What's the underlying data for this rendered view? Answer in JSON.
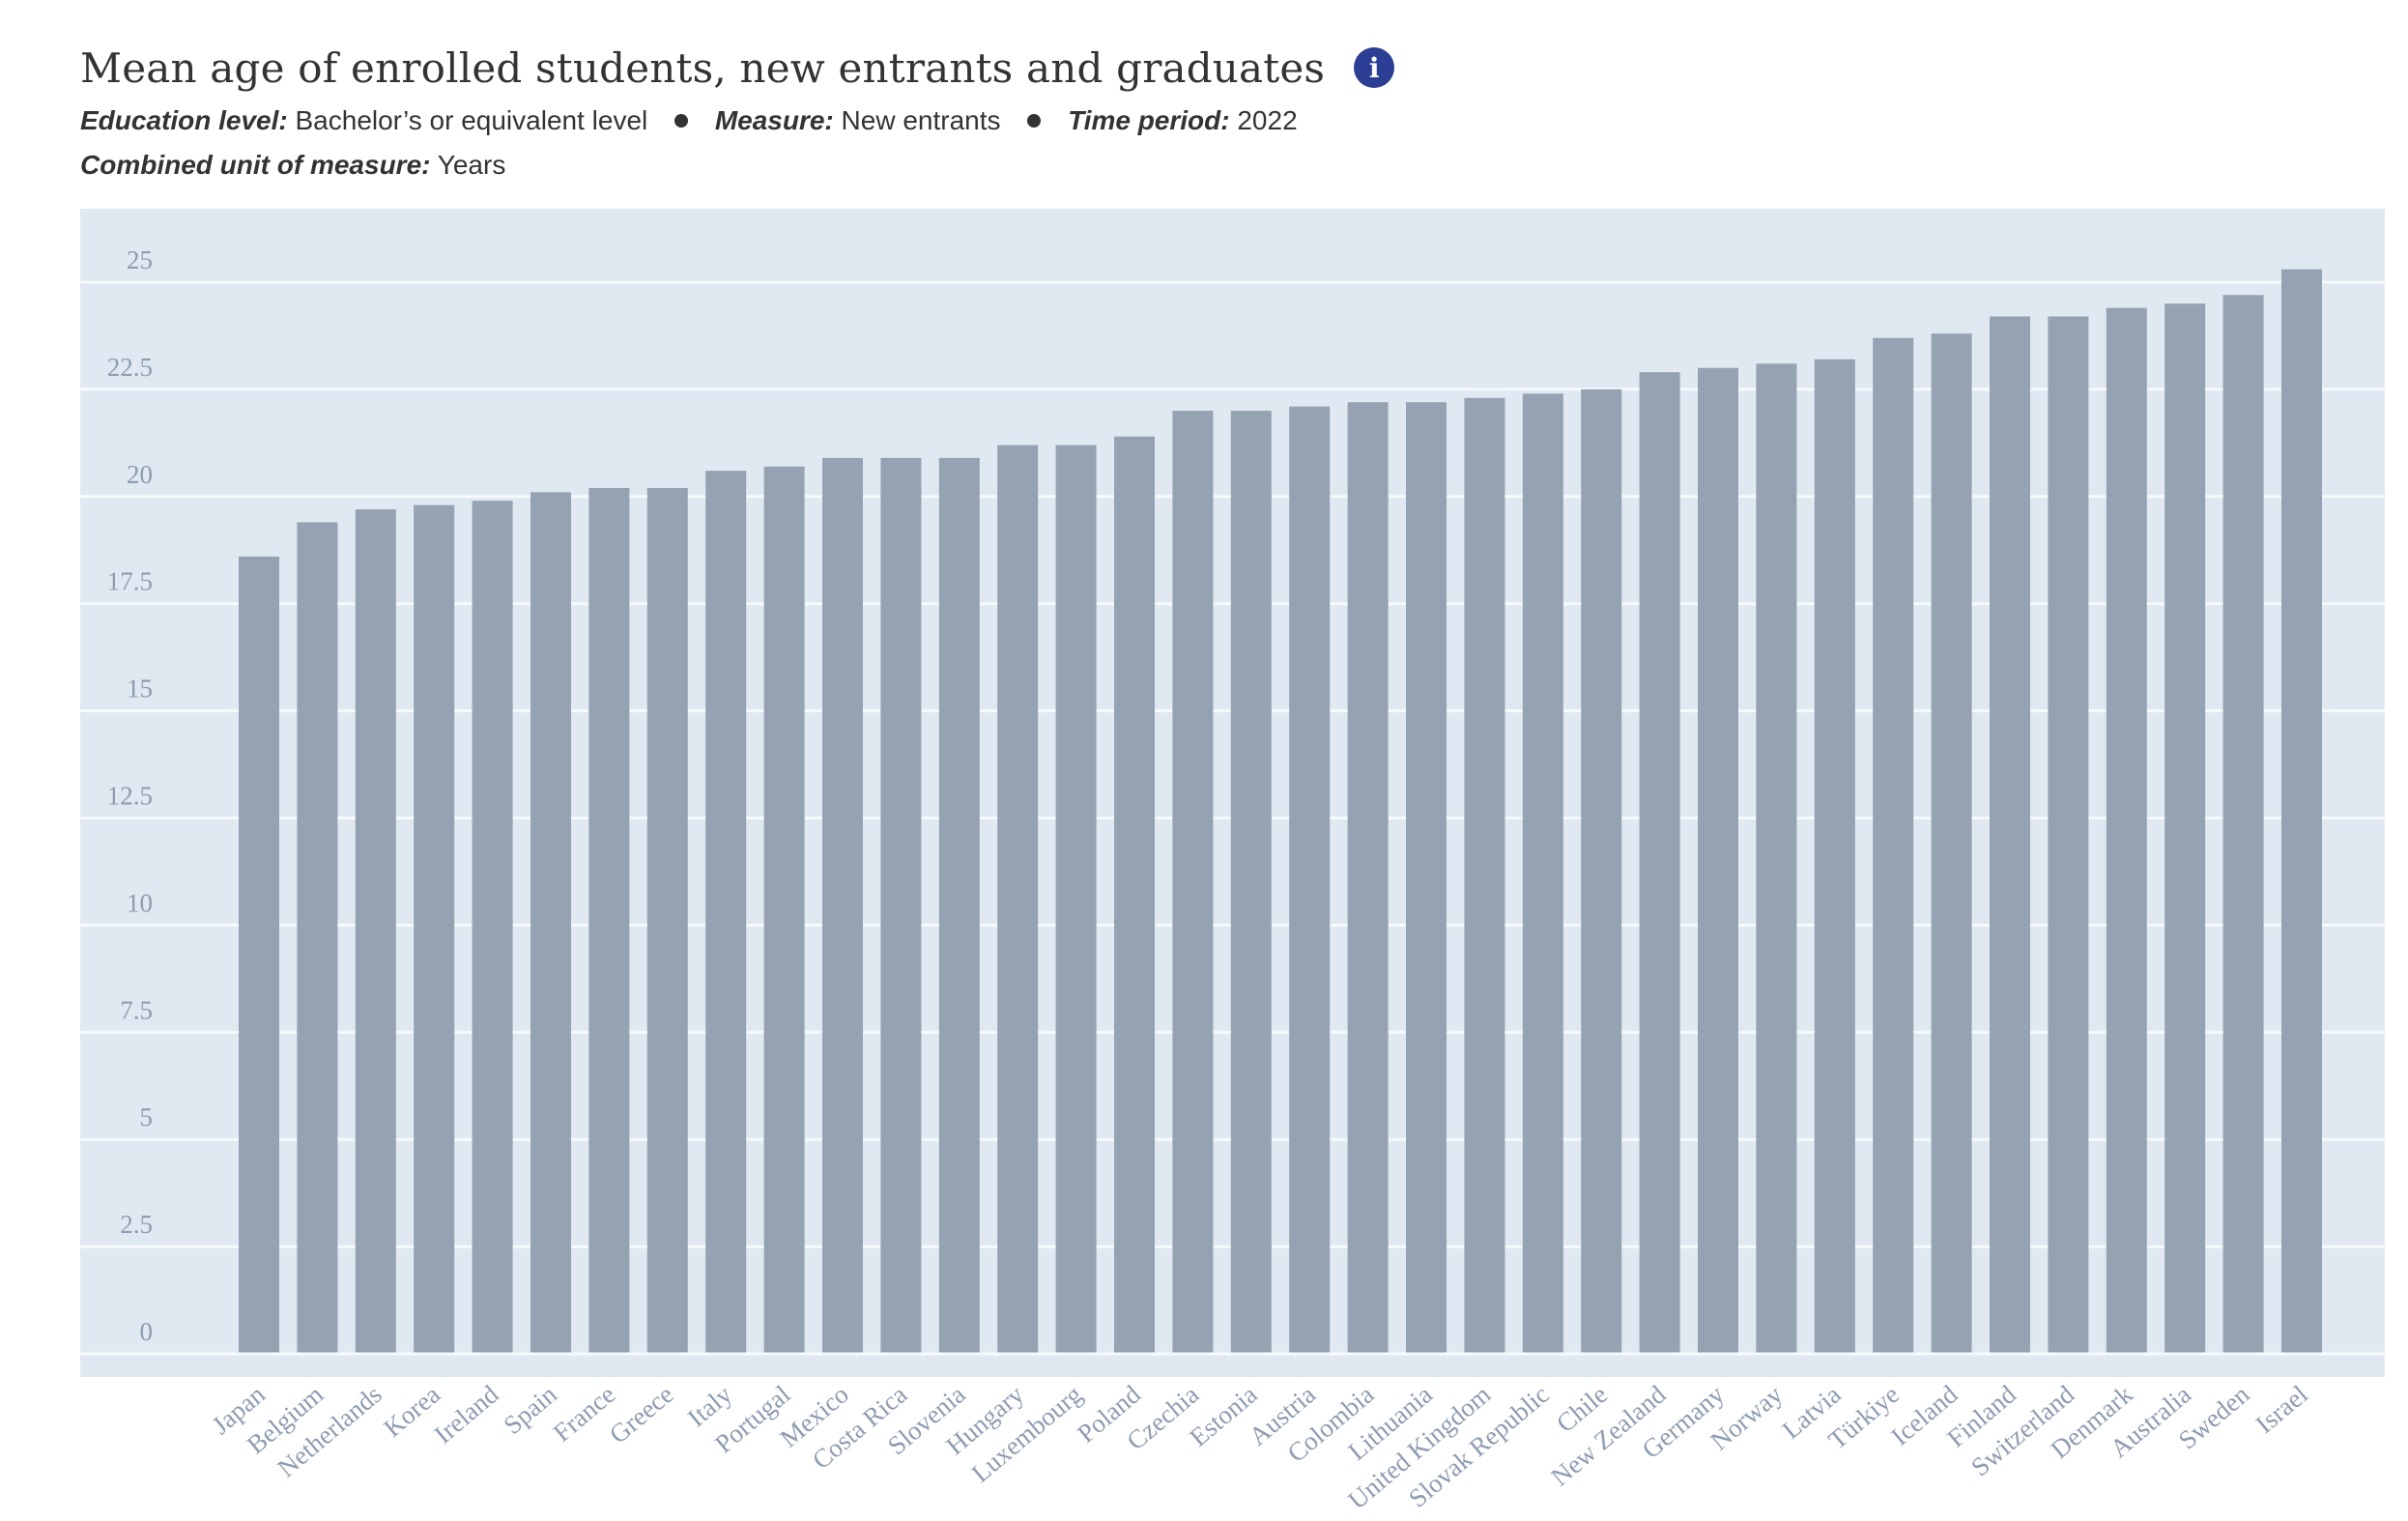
{
  "header": {
    "title": "Mean age of enrolled students, new entrants and graduates",
    "info_icon": "info-icon",
    "education_level_label": "Education level:",
    "education_level_value": "Bachelor’s or equivalent level",
    "measure_label": "Measure:",
    "measure_value": "New entrants",
    "time_period_label": "Time period:",
    "time_period_value": "2022",
    "unit_label": "Combined unit of measure:",
    "unit_value": "Years"
  },
  "colors": {
    "plot_background": "#e0e9f1",
    "bar": "#95a2b1",
    "gridline": "#f7fafc",
    "tick_label": "#8d9cb0",
    "title_text": "#333333",
    "info_icon": "#2c3e94"
  },
  "chart_data": {
    "type": "bar",
    "categories": [
      "Japan",
      "Belgium",
      "Netherlands",
      "Korea",
      "Ireland",
      "Spain",
      "France",
      "Greece",
      "Italy",
      "Portugal",
      "Mexico",
      "Costa Rica",
      "Slovenia",
      "Hungary",
      "Luxembourg",
      "Poland",
      "Czechia",
      "Estonia",
      "Austria",
      "Colombia",
      "Lithuania",
      "United Kingdom",
      "Slovak Republic",
      "Chile",
      "New Zealand",
      "Germany",
      "Norway",
      "Latvia",
      "Türkiye",
      "Iceland",
      "Finland",
      "Switzerland",
      "Denmark",
      "Australia",
      "Sweden",
      "Israel"
    ],
    "values": [
      18.6,
      19.4,
      19.7,
      19.8,
      19.9,
      20.1,
      20.2,
      20.2,
      20.6,
      20.7,
      20.9,
      20.9,
      20.9,
      21.2,
      21.2,
      21.4,
      22.0,
      22.0,
      22.1,
      22.2,
      22.2,
      22.3,
      22.4,
      22.5,
      22.9,
      23.0,
      23.1,
      23.2,
      23.7,
      23.8,
      24.2,
      24.2,
      24.4,
      24.5,
      24.7,
      25.3
    ],
    "yticks": [
      "0",
      "2.5",
      "5",
      "7.5",
      "10",
      "12.5",
      "15",
      "17.5",
      "20",
      "22.5",
      "25"
    ],
    "ylim": [
      0,
      25
    ],
    "grid": true,
    "legend": "none"
  }
}
